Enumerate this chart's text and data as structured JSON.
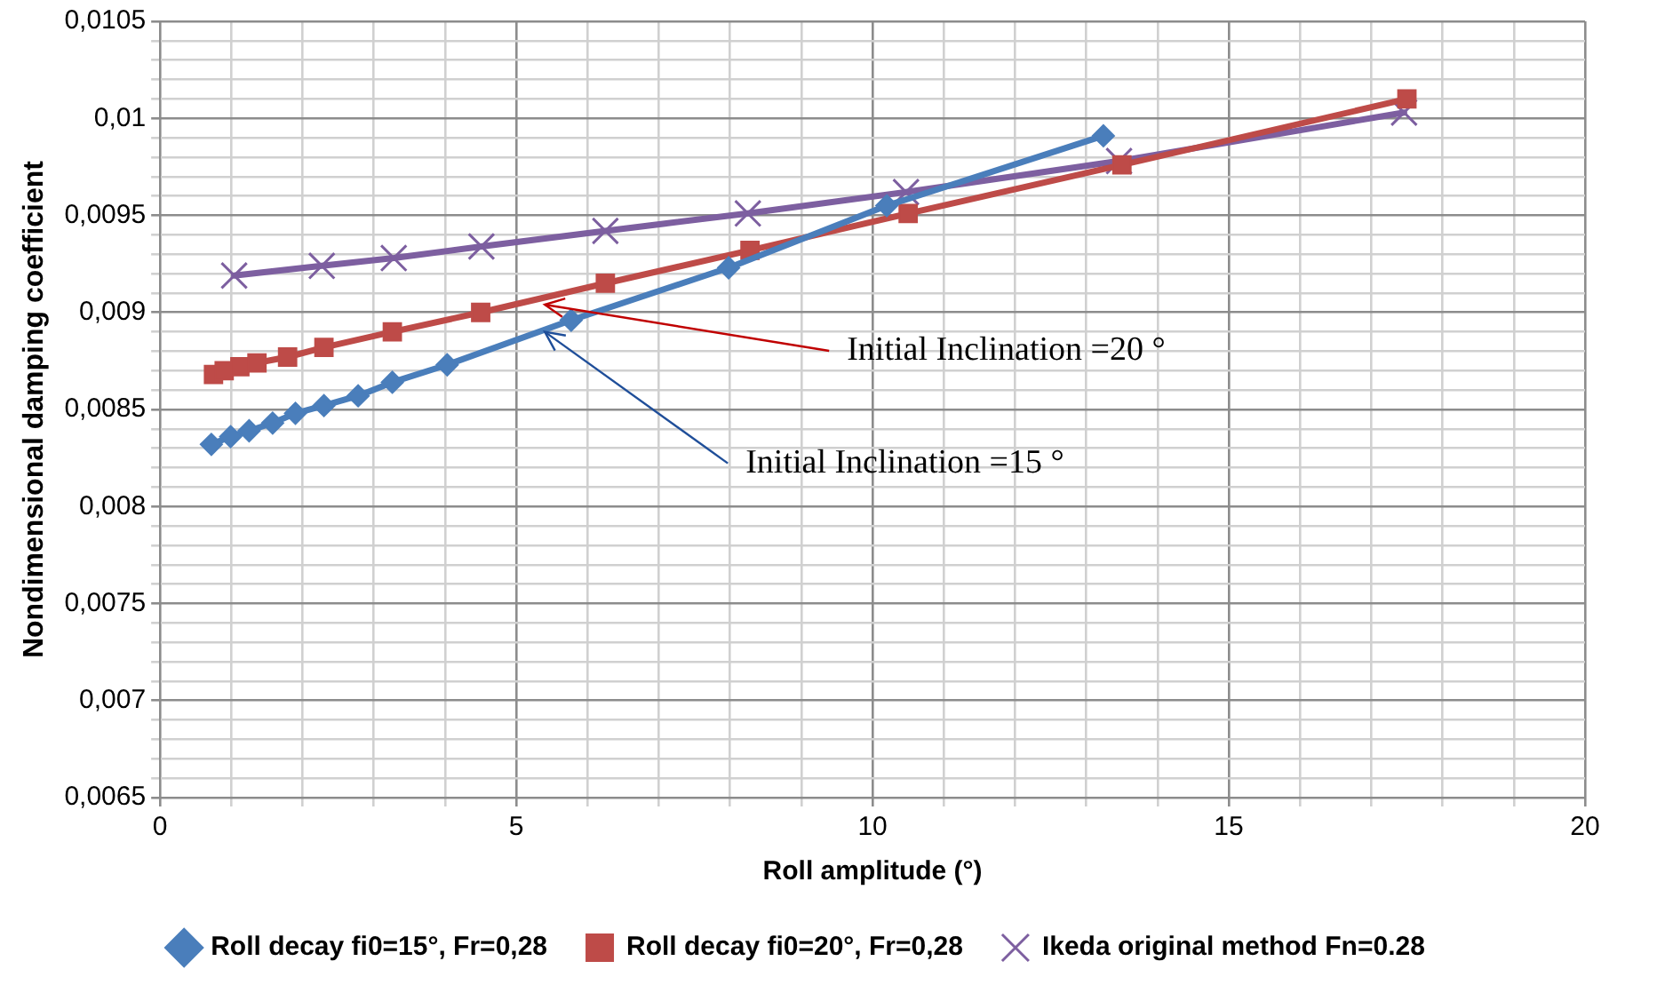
{
  "chart_data": {
    "type": "line",
    "xlabel": "Roll amplitude (°)",
    "ylabel": "Nondimensional damping coefficient",
    "xlim": [
      0,
      20
    ],
    "xticks": [
      0,
      {
        "value": 1,
        "label": null
      },
      {
        "value": 2,
        "label": null
      },
      {
        "value": 3,
        "label": null
      },
      {
        "value": 4,
        "label": null
      },
      5,
      {
        "value": 6,
        "label": null
      },
      {
        "value": 7,
        "label": null
      },
      {
        "value": 8,
        "label": null
      },
      {
        "value": 9,
        "label": null
      },
      10,
      {
        "value": 11,
        "label": null
      },
      {
        "value": 12,
        "label": null
      },
      {
        "value": 13,
        "label": null
      },
      {
        "value": 14,
        "label": null
      },
      15,
      {
        "value": 16,
        "label": null
      },
      {
        "value": 17,
        "label": null
      },
      {
        "value": 18,
        "label": null
      },
      {
        "value": 19,
        "label": null
      },
      20
    ],
    "ylim": [
      0.0065,
      0.0105
    ],
    "yticks": [
      {
        "value": 0.0065,
        "label": "0,0065"
      },
      {
        "value": 0.0066,
        "label": null
      },
      {
        "value": 0.0067,
        "label": null
      },
      {
        "value": 0.0068,
        "label": null
      },
      {
        "value": 0.0069,
        "label": null
      },
      {
        "value": 0.007,
        "label": "0,007"
      },
      {
        "value": 0.0071,
        "label": null
      },
      {
        "value": 0.0072,
        "label": null
      },
      {
        "value": 0.0073,
        "label": null
      },
      {
        "value": 0.0074,
        "label": null
      },
      {
        "value": 0.0075,
        "label": "0,0075"
      },
      {
        "value": 0.0076,
        "label": null
      },
      {
        "value": 0.0077,
        "label": null
      },
      {
        "value": 0.0078,
        "label": null
      },
      {
        "value": 0.0079,
        "label": null
      },
      {
        "value": 0.008,
        "label": "0,008"
      },
      {
        "value": 0.0081,
        "label": null
      },
      {
        "value": 0.0082,
        "label": null
      },
      {
        "value": 0.0083,
        "label": null
      },
      {
        "value": 0.0084,
        "label": null
      },
      {
        "value": 0.0085,
        "label": "0,0085"
      },
      {
        "value": 0.0086,
        "label": null
      },
      {
        "value": 0.0087,
        "label": null
      },
      {
        "value": 0.0088,
        "label": null
      },
      {
        "value": 0.0089,
        "label": null
      },
      {
        "value": 0.009,
        "label": "0,009"
      },
      {
        "value": 0.0091,
        "label": null
      },
      {
        "value": 0.0092,
        "label": null
      },
      {
        "value": 0.0093,
        "label": null
      },
      {
        "value": 0.0094,
        "label": null
      },
      {
        "value": 0.0095,
        "label": "0,0095"
      },
      {
        "value": 0.0096,
        "label": null
      },
      {
        "value": 0.0097,
        "label": null
      },
      {
        "value": 0.0098,
        "label": null
      },
      {
        "value": 0.0099,
        "label": null
      },
      {
        "value": 0.01,
        "label": "0,01"
      },
      {
        "value": 0.0101,
        "label": null
      },
      {
        "value": 0.0102,
        "label": null
      },
      {
        "value": 0.0103,
        "label": null
      },
      {
        "value": 0.0104,
        "label": null
      },
      {
        "value": 0.0105,
        "label": "0,0105"
      }
    ],
    "grid": true,
    "legend": "bottom",
    "line_style": "solid",
    "series": [
      {
        "name": "Roll decay fi0=15°, Fr=0,28",
        "color": "#4a7ebb",
        "marker": "diamond",
        "x": [
          0.72,
          0.99,
          1.25,
          1.58,
          1.9,
          2.3,
          2.78,
          3.26,
          4.03,
          5.77,
          7.98,
          10.2,
          13.24
        ],
        "values": [
          0.00832,
          0.00836,
          0.00839,
          0.00843,
          0.00848,
          0.00852,
          0.00857,
          0.00864,
          0.00873,
          0.00896,
          0.00923,
          0.00955,
          0.00991
        ]
      },
      {
        "name": "Roll decay fi0=20°, Fr=0,28",
        "color": "#be4b48",
        "marker": "square",
        "x": [
          0.75,
          0.9,
          1.12,
          1.36,
          1.79,
          2.3,
          3.26,
          4.5,
          6.25,
          8.28,
          10.5,
          13.5,
          17.5
        ],
        "values": [
          0.00868,
          0.0087,
          0.00872,
          0.00874,
          0.00877,
          0.00882,
          0.0089,
          0.009,
          0.00915,
          0.00932,
          0.00951,
          0.00976,
          0.0101
        ]
      },
      {
        "name": "Ikeda original method Fn=0.28",
        "color": "#7d5fa0",
        "marker": "cross",
        "x": [
          1.04,
          2.27,
          3.28,
          4.51,
          6.25,
          8.25,
          10.47,
          13.46,
          17.46
        ],
        "values": [
          0.00919,
          0.00924,
          0.00928,
          0.00934,
          0.00942,
          0.00951,
          0.00962,
          0.00978,
          0.01003
        ]
      }
    ],
    "annotations": [
      {
        "text": "Initial Inclination =20 °",
        "x": 5.4,
        "y": 0.00904
      },
      {
        "text": "Initial Inclination =15 °",
        "x": 5.4,
        "y": 0.0089
      }
    ]
  }
}
